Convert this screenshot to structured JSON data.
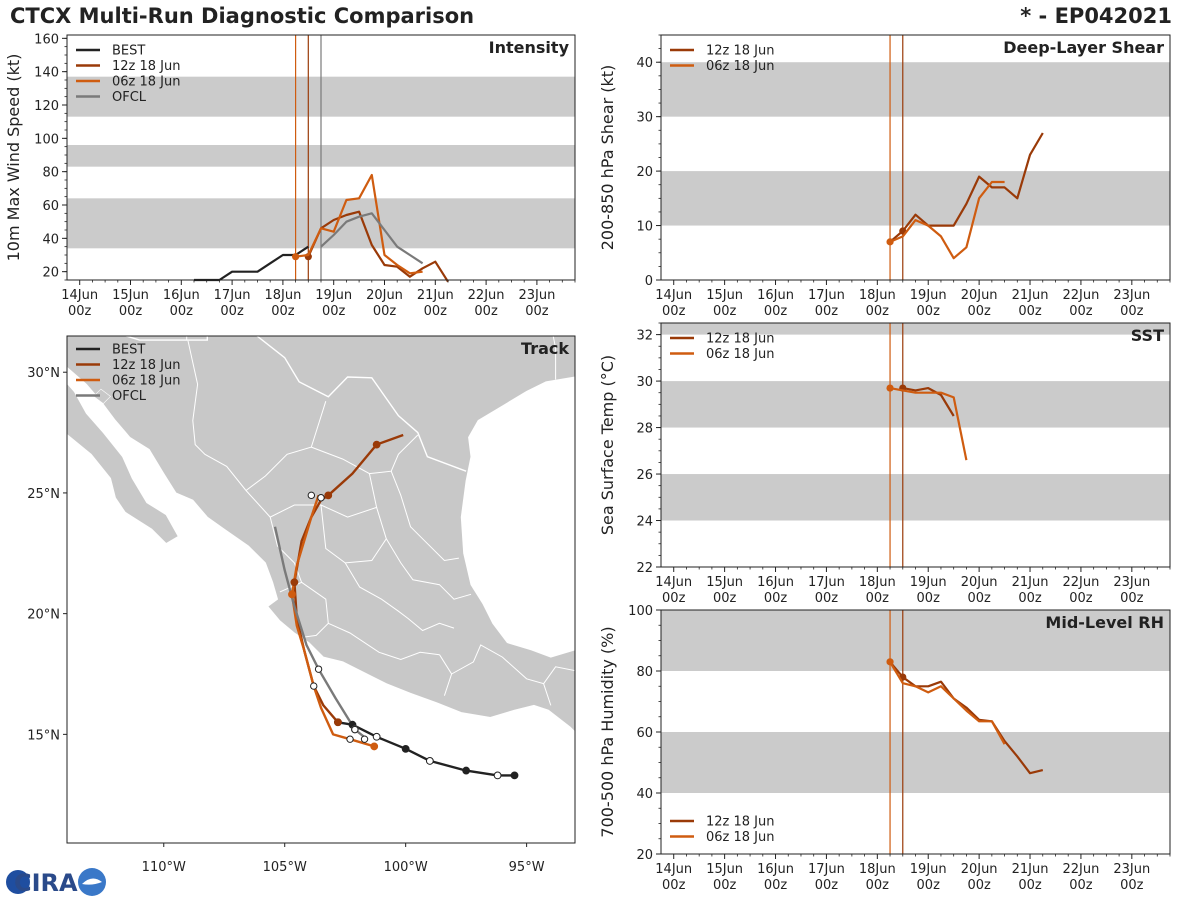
{
  "header": {
    "title": "CTCX Multi-Run Diagnostic Comparison",
    "storm": "* - EP042021"
  },
  "colors": {
    "best": "#222222",
    "run12": "#9a3a08",
    "run06": "#cf5c10",
    "ofcl": "#7a7a7a",
    "band": "#cbcbcb",
    "land": "#c8c8c8",
    "border": "#ffffff"
  },
  "time_ticks": [
    "14Jun",
    "15Jun",
    "16Jun",
    "17Jun",
    "18Jun",
    "19Jun",
    "20Jun",
    "21Jun",
    "22Jun",
    "23Jun"
  ],
  "time_tick_sub": "00z",
  "chart_data": [
    {
      "id": "intensity",
      "type": "line",
      "title": "Intensity",
      "ylabel": "10m Max Wind Speed (kt)",
      "ylim": [
        15,
        162
      ],
      "yticks": [
        20,
        40,
        60,
        80,
        100,
        120,
        140,
        160
      ],
      "xlim_days": [
        13.75,
        23.75
      ],
      "bands": [
        [
          34,
          64
        ],
        [
          83,
          96
        ],
        [
          113,
          137
        ]
      ],
      "vlines": [
        {
          "day": 18.25,
          "series": "06z 18 Jun"
        },
        {
          "day": 18.5,
          "series": "12z 18 Jun"
        },
        {
          "day": 18.75,
          "series": "OFCL"
        }
      ],
      "legend": [
        "BEST",
        "12z 18 Jun",
        "06z 18 Jun",
        "OFCL"
      ],
      "series": [
        {
          "name": "BEST",
          "color": "best",
          "x": [
            16.25,
            16.5,
            16.75,
            17.0,
            17.25,
            17.5,
            17.75,
            18.0,
            18.25,
            18.5
          ],
          "y": [
            15,
            15,
            15,
            20,
            20,
            20,
            25,
            30,
            30,
            35
          ],
          "marker_x": null
        },
        {
          "name": "12z 18 Jun",
          "color": "run12",
          "x": [
            18.5,
            18.75,
            19.0,
            19.25,
            19.5,
            19.75,
            20.0,
            20.25,
            20.5,
            20.75,
            21.0,
            21.25
          ],
          "y": [
            29,
            46,
            51,
            54,
            56,
            36,
            24,
            23,
            17,
            22,
            26,
            14
          ],
          "marker_x": 18.5
        },
        {
          "name": "06z 18 Jun",
          "color": "run06",
          "x": [
            18.25,
            18.5,
            18.75,
            19.0,
            19.25,
            19.5,
            19.75,
            20.0,
            20.25,
            20.5,
            20.75
          ],
          "y": [
            29,
            30,
            46,
            44,
            63,
            64,
            78,
            30,
            24,
            19,
            20
          ],
          "marker_x": 18.25
        },
        {
          "name": "OFCL",
          "color": "ofcl",
          "x": [
            18.75,
            19.0,
            19.25,
            19.5,
            19.75,
            20.0,
            20.25,
            20.5,
            20.75
          ],
          "y": [
            35,
            42,
            50,
            53,
            55,
            45,
            35,
            30,
            25
          ],
          "marker_x": null
        }
      ]
    },
    {
      "id": "shear",
      "type": "line",
      "title": "Deep-Layer Shear",
      "ylabel": "200-850 hPa Shear (kt)",
      "ylim": [
        0,
        45
      ],
      "yticks": [
        0,
        10,
        20,
        30,
        40
      ],
      "xlim_days": [
        13.75,
        23.75
      ],
      "bands": [
        [
          10,
          20
        ],
        [
          30,
          40
        ]
      ],
      "vlines": [
        {
          "day": 18.25,
          "series": "06z 18 Jun"
        },
        {
          "day": 18.5,
          "series": "12z 18 Jun"
        }
      ],
      "legend": [
        "12z 18 Jun",
        "06z 18 Jun"
      ],
      "series": [
        {
          "name": "12z 18 Jun",
          "color": "run12",
          "x": [
            18.25,
            18.5,
            18.75,
            19.0,
            19.25,
            19.5,
            19.75,
            20.0,
            20.25,
            20.5,
            20.75,
            21.0,
            21.25
          ],
          "y": [
            7,
            9,
            12,
            10,
            10,
            10,
            14,
            19,
            17,
            17,
            15,
            23,
            27
          ],
          "marker_x": 18.5
        },
        {
          "name": "06z 18 Jun",
          "color": "run06",
          "x": [
            18.25,
            18.5,
            18.75,
            19.0,
            19.25,
            19.5,
            19.75,
            20.0,
            20.25,
            20.5
          ],
          "y": [
            7,
            8,
            11,
            10,
            8,
            4,
            6,
            15,
            18,
            18
          ],
          "marker_x": 18.25
        }
      ]
    },
    {
      "id": "sst",
      "type": "line",
      "title": "SST",
      "ylabel": "Sea Surface Temp (°C)",
      "ylim": [
        22,
        32.5
      ],
      "yticks": [
        22,
        24,
        26,
        28,
        30,
        32
      ],
      "xlim_days": [
        13.75,
        23.75
      ],
      "bands": [
        [
          24,
          26
        ],
        [
          28,
          30
        ],
        [
          32,
          32.5
        ]
      ],
      "vlines": [
        {
          "day": 18.25,
          "series": "06z 18 Jun"
        },
        {
          "day": 18.5,
          "series": "12z 18 Jun"
        }
      ],
      "legend": [
        "12z 18 Jun",
        "06z 18 Jun"
      ],
      "series": [
        {
          "name": "12z 18 Jun",
          "color": "run12",
          "x": [
            18.5,
            18.75,
            19.0,
            19.25,
            19.5
          ],
          "y": [
            29.7,
            29.6,
            29.7,
            29.4,
            28.5
          ],
          "marker_x": 18.5
        },
        {
          "name": "06z 18 Jun",
          "color": "run06",
          "x": [
            18.25,
            18.5,
            18.75,
            19.0,
            19.25,
            19.5,
            19.75
          ],
          "y": [
            29.7,
            29.6,
            29.5,
            29.5,
            29.5,
            29.3,
            26.6
          ],
          "marker_x": 18.25
        }
      ]
    },
    {
      "id": "rh",
      "type": "line",
      "title": "Mid-Level RH",
      "ylabel": "700-500 hPa Humidity (%)",
      "ylim": [
        20,
        100
      ],
      "yticks": [
        20,
        40,
        60,
        80,
        100
      ],
      "xlim_days": [
        13.75,
        23.75
      ],
      "bands": [
        [
          40,
          60
        ],
        [
          80,
          100
        ]
      ],
      "vlines": [
        {
          "day": 18.25,
          "series": "06z 18 Jun"
        },
        {
          "day": 18.5,
          "series": "12z 18 Jun"
        }
      ],
      "legend": [
        "12z 18 Jun",
        "06z 18 Jun"
      ],
      "series": [
        {
          "name": "12z 18 Jun",
          "color": "run12",
          "x": [
            18.25,
            18.5,
            18.75,
            19.0,
            19.25,
            19.5,
            19.75,
            20.0,
            20.25,
            20.5,
            20.75,
            21.0,
            21.25
          ],
          "y": [
            83,
            78,
            75,
            75,
            76.5,
            71,
            68,
            64,
            63.5,
            57,
            52,
            46.5,
            47.5
          ],
          "marker_x": 18.5
        },
        {
          "name": "06z 18 Jun",
          "color": "run06",
          "x": [
            18.25,
            18.5,
            18.75,
            19.0,
            19.25,
            19.5,
            19.75,
            20.0,
            20.25,
            20.5
          ],
          "y": [
            83,
            76,
            75,
            73,
            75,
            71,
            67,
            63.5,
            63.5,
            56
          ],
          "marker_x": 18.25
        }
      ]
    },
    {
      "id": "track",
      "type": "scatter",
      "title": "Track",
      "xlim": [
        -114,
        -93
      ],
      "ylim": [
        10.5,
        31.5
      ],
      "xticks": [
        -110,
        -105,
        -100,
        -95
      ],
      "xtick_labels": [
        "110°W",
        "105°W",
        "100°W",
        "95°W"
      ],
      "yticks": [
        15,
        20,
        25,
        30
      ],
      "ytick_labels": [
        "15°N",
        "20°N",
        "25°N",
        "30°N"
      ],
      "legend": [
        "BEST",
        "12z 18 Jun",
        "06z 18 Jun",
        "OFCL"
      ],
      "series": [
        {
          "name": "BEST",
          "color": "best",
          "lon": [
            -95.5,
            -96.2,
            -97.5,
            -99.0,
            -100.0,
            -101.2,
            -102.2,
            -102.8
          ],
          "lat": [
            13.3,
            13.3,
            13.5,
            13.9,
            14.4,
            14.9,
            15.4,
            15.5
          ],
          "filled": [
            true,
            false,
            true,
            false,
            true,
            false,
            true,
            true
          ]
        },
        {
          "name": "12z 18 Jun",
          "color": "run12",
          "lon": [
            -102.8,
            -103.4,
            -103.8,
            -104.2,
            -104.5,
            -104.6,
            -104.3,
            -103.9,
            -103.5,
            -103.2,
            -102.2,
            -101.2,
            -100.1
          ],
          "lat": [
            15.5,
            16.2,
            17.0,
            18.5,
            19.8,
            21.3,
            23.0,
            24.0,
            24.7,
            24.9,
            25.8,
            27.0,
            27.4
          ],
          "filled": [
            true,
            false,
            false,
            false,
            false,
            true,
            false,
            false,
            false,
            true,
            false,
            true,
            false
          ]
        },
        {
          "name": "06z 18 Jun",
          "color": "run06",
          "lon": [
            -101.3,
            -102.3,
            -103.0,
            -103.5,
            -103.8,
            -104.2,
            -104.5,
            -104.7,
            -104.5,
            -104.2,
            -103.9,
            -103.6
          ],
          "lat": [
            14.5,
            14.8,
            15.0,
            16.1,
            17.0,
            18.5,
            19.5,
            20.8,
            22.0,
            23.0,
            24.0,
            24.9
          ],
          "filled": [
            true,
            false,
            false,
            false,
            false,
            false,
            false,
            true,
            false,
            false,
            false,
            false
          ]
        },
        {
          "name": "OFCL",
          "color": "ofcl",
          "lon": [
            -101.6,
            -102.1,
            -102.9,
            -103.6,
            -104.1,
            -104.6,
            -105.0,
            -105.4
          ],
          "lat": [
            14.8,
            15.2,
            16.5,
            17.7,
            18.7,
            20.3,
            21.8,
            23.6
          ],
          "filled": [
            false,
            true,
            false,
            false,
            false,
            false,
            false,
            false
          ]
        }
      ]
    }
  ],
  "logo": {
    "text": "CIRA"
  }
}
